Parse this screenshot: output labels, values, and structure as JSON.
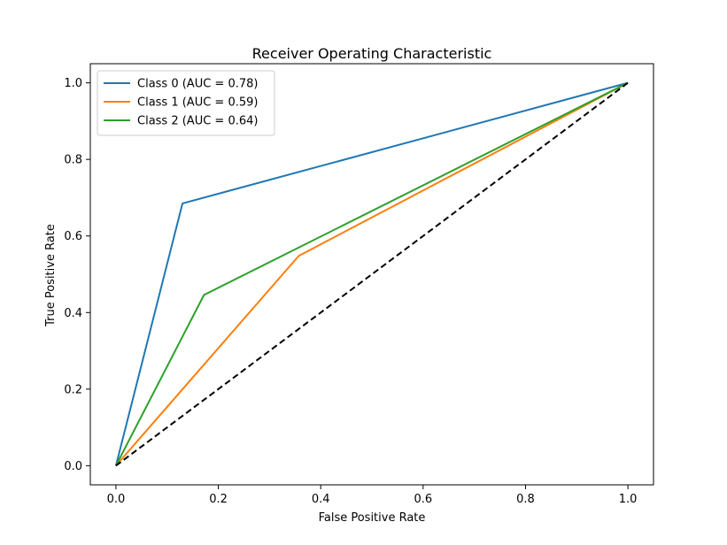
{
  "chart_data": {
    "type": "line",
    "title": "Receiver Operating Characteristic",
    "xlabel": "False Positive Rate",
    "ylabel": "True Positive Rate",
    "xlim": [
      -0.05,
      1.05
    ],
    "ylim": [
      -0.05,
      1.05
    ],
    "xticks": [
      0.0,
      0.2,
      0.4,
      0.6,
      0.8,
      1.0
    ],
    "yticks": [
      0.0,
      0.2,
      0.4,
      0.6,
      0.8,
      1.0
    ],
    "xtick_labels": [
      "0.0",
      "0.2",
      "0.4",
      "0.6",
      "0.8",
      "1.0"
    ],
    "ytick_labels": [
      "0.0",
      "0.2",
      "0.4",
      "0.6",
      "0.8",
      "1.0"
    ],
    "grid": false,
    "legend_position": "top-left",
    "series": [
      {
        "name": "Class 0 (AUC = 0.78)",
        "color": "#1f77b4",
        "style": "solid",
        "x": [
          0.0,
          0.13,
          1.0
        ],
        "y": [
          0.0,
          0.685,
          1.0
        ]
      },
      {
        "name": "Class 1 (AUC = 0.59)",
        "color": "#ff7f0e",
        "style": "solid",
        "x": [
          0.0,
          0.357,
          1.0
        ],
        "y": [
          0.0,
          0.548,
          1.0
        ]
      },
      {
        "name": "Class 2 (AUC = 0.64)",
        "color": "#2ca02c",
        "style": "solid",
        "x": [
          0.0,
          0.172,
          1.0
        ],
        "y": [
          0.0,
          0.446,
          1.0
        ]
      },
      {
        "name": "",
        "color": "#000000",
        "style": "dashed",
        "x": [
          0.0,
          1.0
        ],
        "y": [
          0.0,
          1.0
        ]
      }
    ]
  }
}
